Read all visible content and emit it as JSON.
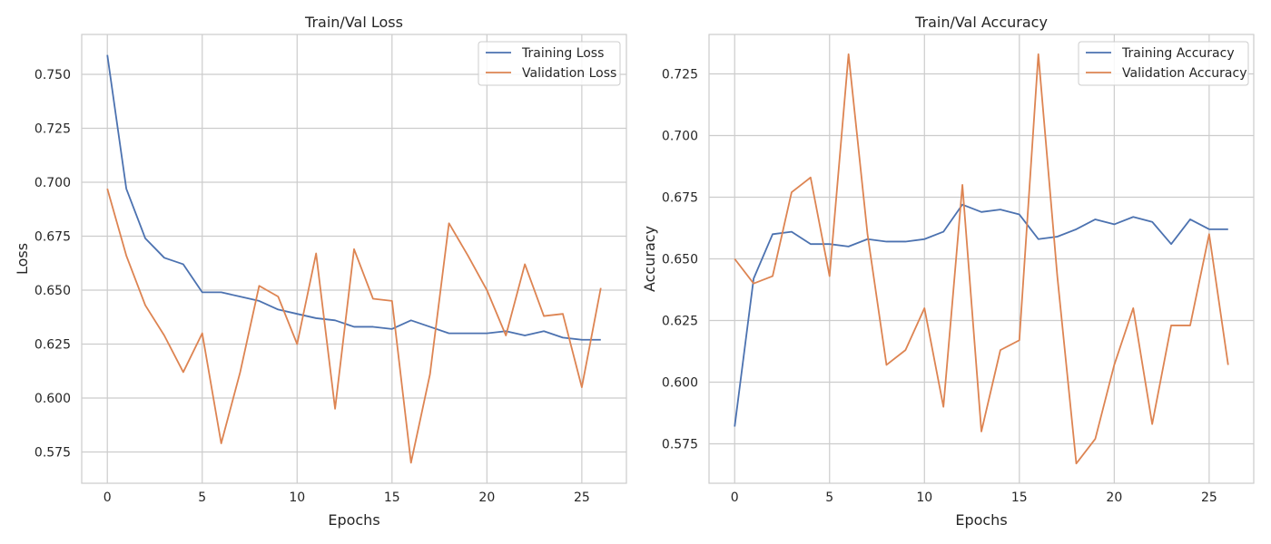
{
  "colors": {
    "training": "#4c72b0",
    "validation": "#dd8452",
    "grid": "#cccccc",
    "frame": "#cccccc"
  },
  "chart_data": [
    {
      "type": "line",
      "title": "Train/Val Loss",
      "xlabel": "Epochs",
      "ylabel": "Loss",
      "xlim": [
        -1.35,
        27.35
      ],
      "ylim": [
        0.5605,
        0.7685
      ],
      "xticks": [
        0,
        5,
        10,
        15,
        20,
        25
      ],
      "yticks": [
        0.575,
        0.6,
        0.625,
        0.65,
        0.675,
        0.7,
        0.725,
        0.75
      ],
      "ytick_labels": [
        "0.575",
        "0.600",
        "0.625",
        "0.650",
        "0.675",
        "0.700",
        "0.725",
        "0.750"
      ],
      "grid": true,
      "legend_position": "top-right",
      "x": [
        0,
        1,
        2,
        3,
        4,
        5,
        6,
        7,
        8,
        9,
        10,
        11,
        12,
        13,
        14,
        15,
        16,
        17,
        18,
        19,
        20,
        21,
        22,
        23,
        24,
        25,
        26
      ],
      "series": [
        {
          "name": "Training Loss",
          "color": "#4c72b0",
          "values": [
            0.759,
            0.697,
            0.674,
            0.665,
            0.662,
            0.649,
            0.649,
            0.647,
            0.645,
            0.641,
            0.639,
            0.637,
            0.636,
            0.633,
            0.633,
            0.632,
            0.636,
            0.633,
            0.63,
            0.63,
            0.63,
            0.631,
            0.629,
            0.631,
            0.628,
            0.627,
            0.627
          ]
        },
        {
          "name": "Validation Loss",
          "color": "#dd8452",
          "values": [
            0.697,
            0.666,
            0.643,
            0.629,
            0.612,
            0.63,
            0.579,
            0.612,
            0.652,
            0.647,
            0.625,
            0.667,
            0.595,
            0.669,
            0.646,
            0.645,
            0.57,
            0.611,
            0.681,
            0.666,
            0.65,
            0.629,
            0.662,
            0.638,
            0.639,
            0.605,
            0.651
          ]
        }
      ]
    },
    {
      "type": "line",
      "title": "Train/Val Accuracy",
      "xlabel": "Epochs",
      "ylabel": "Accuracy",
      "xlim": [
        -1.35,
        27.35
      ],
      "ylim": [
        0.559,
        0.741
      ],
      "xticks": [
        0,
        5,
        10,
        15,
        20,
        25
      ],
      "yticks": [
        0.575,
        0.6,
        0.625,
        0.65,
        0.675,
        0.7,
        0.725
      ],
      "ytick_labels": [
        "0.575",
        "0.600",
        "0.625",
        "0.650",
        "0.675",
        "0.700",
        "0.725"
      ],
      "grid": true,
      "legend_position": "top-right",
      "x": [
        0,
        1,
        2,
        3,
        4,
        5,
        6,
        7,
        8,
        9,
        10,
        11,
        12,
        13,
        14,
        15,
        16,
        17,
        18,
        19,
        20,
        21,
        22,
        23,
        24,
        25,
        26
      ],
      "series": [
        {
          "name": "Training Accuracy",
          "color": "#4c72b0",
          "values": [
            0.582,
            0.642,
            0.66,
            0.661,
            0.656,
            0.656,
            0.655,
            0.658,
            0.657,
            0.657,
            0.658,
            0.661,
            0.672,
            0.669,
            0.67,
            0.668,
            0.658,
            0.659,
            0.662,
            0.666,
            0.664,
            0.667,
            0.665,
            0.656,
            0.666,
            0.662,
            0.662
          ]
        },
        {
          "name": "Validation Accuracy",
          "color": "#dd8452",
          "values": [
            0.65,
            0.64,
            0.643,
            0.677,
            0.683,
            0.643,
            0.733,
            0.66,
            0.607,
            0.613,
            0.63,
            0.59,
            0.68,
            0.58,
            0.613,
            0.617,
            0.733,
            0.643,
            0.567,
            0.577,
            0.607,
            0.63,
            0.583,
            0.623,
            0.623,
            0.66,
            0.607
          ]
        }
      ]
    }
  ]
}
